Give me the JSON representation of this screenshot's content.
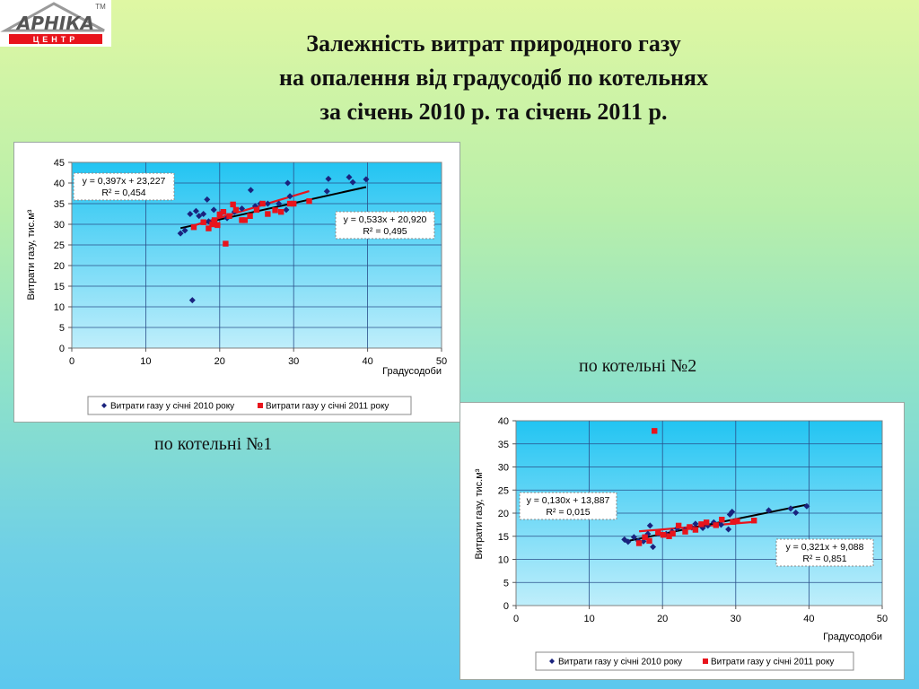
{
  "header": {
    "logo_text": "АРНІКА",
    "logo_sub": "ЦЕНТР",
    "logo_tm": "TM",
    "title_lines": [
      "Залежність витрат природного газу",
      "на опалення від градусодіб по котельнях",
      "за січень 2010 р. та січень 2011 р."
    ]
  },
  "captions": {
    "chart1": "по котельні №1",
    "chart2": "по котельні №2"
  },
  "colors": {
    "series_2010": "#1a237e",
    "series_2011": "#e8141c",
    "plot_bg_top": "#22c4f2",
    "plot_bg_bottom": "#bfeefb",
    "trend": "#000000"
  },
  "chart_data": [
    {
      "type": "scatter",
      "xlabel": "Градусодоби",
      "ylabel": "Витрати газу, тис.м³",
      "xlim": [
        0,
        50
      ],
      "ylim": [
        0,
        45
      ],
      "xticks": [
        0,
        10,
        20,
        30,
        40,
        50
      ],
      "yticks": [
        0,
        5,
        10,
        15,
        20,
        25,
        30,
        35,
        40,
        45
      ],
      "grid": true,
      "legend": "bottom",
      "series": [
        {
          "name": "Витрати газу у січні 2010 року",
          "marker": "diamond",
          "points": [
            [
              14.7,
              27.8
            ],
            [
              15.3,
              28.5
            ],
            [
              16,
              32.5
            ],
            [
              16.3,
              11.6
            ],
            [
              16.8,
              33.2
            ],
            [
              17.2,
              32
            ],
            [
              17.8,
              32.5
            ],
            [
              18.3,
              36
            ],
            [
              18.5,
              30.7
            ],
            [
              19.2,
              33.5
            ],
            [
              20.2,
              32.6
            ],
            [
              21,
              31.5
            ],
            [
              22,
              33
            ],
            [
              23,
              33.8
            ],
            [
              24.2,
              38.3
            ],
            [
              24.8,
              34.4
            ],
            [
              25.5,
              35
            ],
            [
              26.5,
              35
            ],
            [
              28,
              35
            ],
            [
              29,
              33.5
            ],
            [
              29.2,
              40
            ],
            [
              29.5,
              36.8
            ],
            [
              30,
              35
            ],
            [
              34.5,
              38
            ],
            [
              34.7,
              41
            ],
            [
              37.5,
              41.4
            ],
            [
              38,
              40.2
            ],
            [
              39.8,
              40.9
            ]
          ]
        },
        {
          "name": "Витрати газу у січні 2011 року",
          "marker": "square",
          "points": [
            [
              16.5,
              29.3
            ],
            [
              17.8,
              30.5
            ],
            [
              18.5,
              29
            ],
            [
              19,
              30
            ],
            [
              19.3,
              31
            ],
            [
              19.7,
              29.8
            ],
            [
              20,
              32.4
            ],
            [
              20.5,
              33
            ],
            [
              20.8,
              25.3
            ],
            [
              21.3,
              32
            ],
            [
              21.8,
              34.8
            ],
            [
              22.2,
              33.5
            ],
            [
              23,
              31
            ],
            [
              23.4,
              31
            ],
            [
              24.1,
              32
            ],
            [
              25,
              33.5
            ],
            [
              25.8,
              35
            ],
            [
              26.5,
              32.5
            ],
            [
              27.5,
              33.4
            ],
            [
              28.3,
              33
            ],
            [
              29.5,
              35
            ],
            [
              30,
              35
            ],
            [
              32.1,
              35.6
            ]
          ]
        }
      ],
      "trendlines": [
        {
          "series": "Витрати газу у січні 2010 року",
          "equation": "y = 0,397x + 23,227",
          "r2": "R² = 0,454",
          "slope": 0.397,
          "intercept": 23.227,
          "x_range": [
            14.7,
            39.8
          ]
        },
        {
          "series": "Витрати газу у січні 2011 року",
          "equation": "y = 0,533x + 20,920",
          "r2": "R² = 0,495",
          "slope": 0.533,
          "intercept": 20.92,
          "x_range": [
            16.5,
            32.1
          ]
        }
      ]
    },
    {
      "type": "scatter",
      "xlabel": "Градусодоби",
      "ylabel": "Витрати газу, тис.м³",
      "xlim": [
        0,
        50
      ],
      "ylim": [
        0,
        40
      ],
      "xticks": [
        0,
        10,
        20,
        30,
        40,
        50
      ],
      "yticks": [
        0,
        5,
        10,
        15,
        20,
        25,
        30,
        35,
        40
      ],
      "grid": true,
      "legend": "bottom",
      "series": [
        {
          "name": "Витрати газу у січні 2010 року",
          "marker": "diamond",
          "points": [
            [
              14.8,
              14.3
            ],
            [
              15.3,
              13.8
            ],
            [
              16.1,
              14.8
            ],
            [
              16.7,
              14
            ],
            [
              17.4,
              13.9
            ],
            [
              18,
              15.5
            ],
            [
              18.3,
              17.3
            ],
            [
              18.7,
              12.7
            ],
            [
              19.5,
              15.6
            ],
            [
              20.5,
              15.5
            ],
            [
              21.3,
              16
            ],
            [
              22,
              16.7
            ],
            [
              23,
              16.3
            ],
            [
              24,
              16.9
            ],
            [
              24.5,
              17.7
            ],
            [
              25.5,
              16.8
            ],
            [
              26.2,
              17.3
            ],
            [
              27,
              18
            ],
            [
              28,
              17.5
            ],
            [
              29,
              16.5
            ],
            [
              29.2,
              19.7
            ],
            [
              29.5,
              20.3
            ],
            [
              30,
              18.3
            ],
            [
              34.5,
              20.6
            ],
            [
              37.5,
              21
            ],
            [
              38.2,
              20.1
            ],
            [
              39.7,
              21.5
            ]
          ]
        },
        {
          "name": "Витрати газу у січні 2011 року",
          "marker": "square",
          "points": [
            [
              16.8,
              13.5
            ],
            [
              17.6,
              14.8
            ],
            [
              18.2,
              14
            ],
            [
              18.9,
              37.8
            ],
            [
              19.4,
              15.8
            ],
            [
              20.1,
              15.3
            ],
            [
              20.9,
              15
            ],
            [
              21.4,
              15.6
            ],
            [
              22.2,
              17.3
            ],
            [
              23.1,
              16
            ],
            [
              23.7,
              17
            ],
            [
              24.5,
              16.4
            ],
            [
              25.3,
              17.6
            ],
            [
              26,
              18
            ],
            [
              27.3,
              17.4
            ],
            [
              28.1,
              18.6
            ],
            [
              29.6,
              18.1
            ],
            [
              30.2,
              18.3
            ],
            [
              32.5,
              18.4
            ]
          ]
        }
      ],
      "trendlines": [
        {
          "series": "Витрати газу у січні 2011 року",
          "equation": "y = 0,130x + 13,887",
          "r2": "R² = 0,015",
          "slope": 0.13,
          "intercept": 13.887,
          "x_range": [
            16.8,
            32.5
          ]
        },
        {
          "series": "Витрати газу у січні 2010 року",
          "equation": "y = 0,321x + 9,088",
          "r2": "R² = 0,851",
          "slope": 0.321,
          "intercept": 9.088,
          "x_range": [
            14.8,
            39.7
          ]
        }
      ]
    }
  ]
}
